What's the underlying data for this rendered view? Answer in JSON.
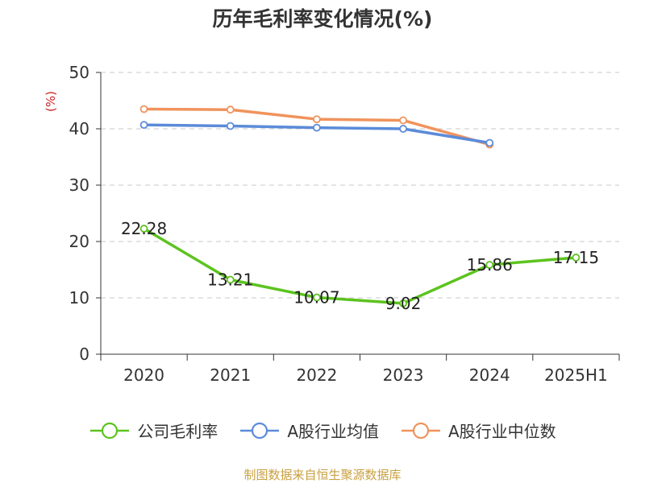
{
  "chart_data": {
    "type": "line",
    "title": "历年毛利率变化情况(%)",
    "ylabel": "(%)",
    "ylim": [
      0,
      50
    ],
    "yticks": [
      0,
      10,
      20,
      30,
      40,
      50
    ],
    "categories": [
      "2020",
      "2021",
      "2022",
      "2023",
      "2024",
      "2025H1"
    ],
    "grid": true,
    "legend_position": "bottom",
    "series": [
      {
        "name": "公司毛利率",
        "color": "#5cc31f",
        "values": [
          22.28,
          13.21,
          10.07,
          9.02,
          15.86,
          17.15
        ],
        "show_labels": true
      },
      {
        "name": "A股行业均值",
        "color": "#5b8bd9",
        "values": [
          40.7,
          40.5,
          40.2,
          40.0,
          37.5,
          null
        ],
        "show_labels": false
      },
      {
        "name": "A股行业中位数",
        "color": "#f0935c",
        "values": [
          43.5,
          43.4,
          41.7,
          41.5,
          37.2,
          null
        ],
        "show_labels": false
      }
    ]
  },
  "footer": {
    "source": "制图数据来自恒生聚源数据库"
  }
}
